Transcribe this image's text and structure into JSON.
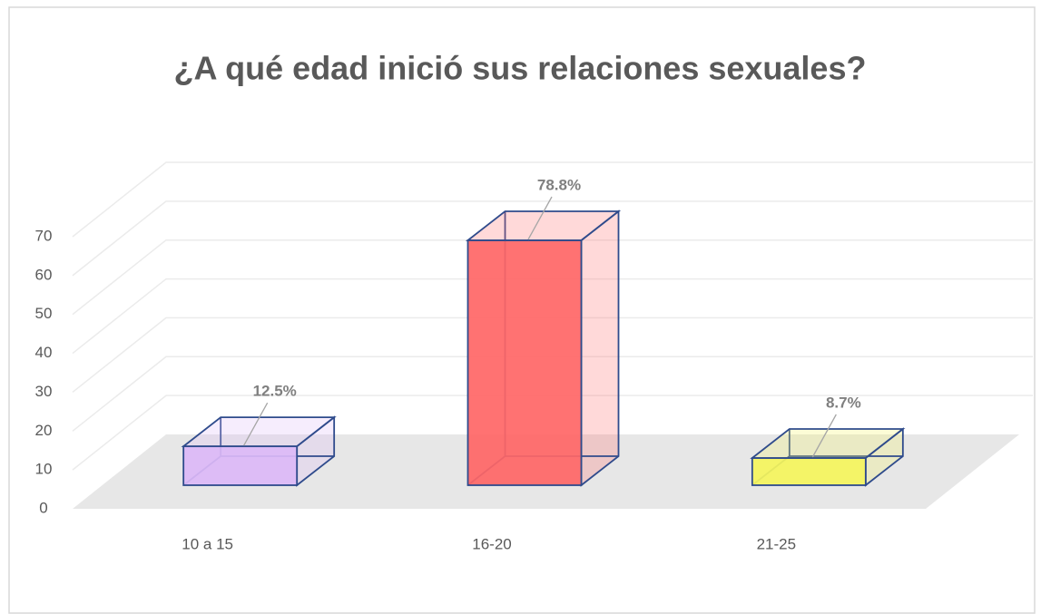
{
  "chart_data": {
    "type": "bar3d",
    "title": "¿A qué edad inició sus relaciones sexuales?",
    "categories": [
      "10 a 15",
      "16-20",
      "21-25"
    ],
    "values": [
      10,
      63,
      7
    ],
    "value_labels": [
      "12.5%",
      "78.8%",
      "8.7%"
    ],
    "colors": [
      "#dcb9f7",
      "#ff6666",
      "#f5f55c"
    ],
    "ylim": [
      0,
      70
    ],
    "yticks": [
      0,
      10,
      20,
      30,
      40,
      50,
      60,
      70
    ],
    "grid": true
  }
}
